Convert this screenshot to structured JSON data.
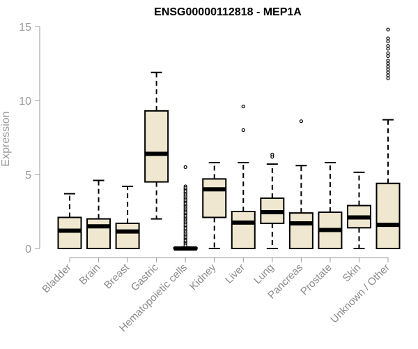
{
  "chart_data": {
    "type": "boxplot",
    "title": "ENSG00000112818 - MEP1A",
    "xlabel": "",
    "ylabel": "Expression",
    "ylim": [
      0,
      15
    ],
    "yticks": [
      0,
      5,
      10,
      15
    ],
    "grid": false,
    "box_color": "#efe7cf",
    "categories": [
      "Bladder",
      "Brain",
      "Breast",
      "Gastric",
      "Hematopoietic cells",
      "Kidney",
      "Liver",
      "Lung",
      "Pancreas",
      "Prostate",
      "Skin",
      "Unknown / Other"
    ],
    "boxes": [
      {
        "label": "Bladder",
        "whisker_low": 0,
        "q1": 0,
        "median": 1.2,
        "q3": 2.1,
        "whisker_high": 3.7,
        "outliers": []
      },
      {
        "label": "Brain",
        "whisker_low": 0,
        "q1": 0,
        "median": 1.5,
        "q3": 2.0,
        "whisker_high": 4.6,
        "outliers": []
      },
      {
        "label": "Breast",
        "whisker_low": 0,
        "q1": 0,
        "median": 1.15,
        "q3": 1.7,
        "whisker_high": 4.2,
        "outliers": []
      },
      {
        "label": "Gastric",
        "whisker_low": 2.0,
        "q1": 4.5,
        "median": 6.4,
        "q3": 9.3,
        "whisker_high": 11.9,
        "outliers": []
      },
      {
        "label": "Hematopoietic cells",
        "whisker_low": 0,
        "q1": 0,
        "median": 0.0,
        "q3": 0.05,
        "whisker_high": 0.1,
        "outliers": [
          5.5,
          4.2,
          4.1,
          4.0,
          3.9,
          3.8,
          3.7,
          3.6,
          3.5,
          3.4,
          3.3,
          3.2,
          3.1,
          3.0,
          2.9,
          2.8,
          2.7,
          2.6,
          2.5,
          2.4,
          2.3,
          2.2,
          2.1,
          2.0,
          1.9,
          1.8,
          1.7,
          1.6,
          1.5,
          1.4,
          1.3,
          1.2,
          1.1,
          1.0,
          0.9,
          0.8,
          0.7,
          0.6,
          0.5,
          0.4,
          0.3,
          0.2
        ]
      },
      {
        "label": "Kidney",
        "whisker_low": 0,
        "q1": 2.1,
        "median": 4.0,
        "q3": 4.7,
        "whisker_high": 5.8,
        "outliers": []
      },
      {
        "label": "Liver",
        "whisker_low": 0,
        "q1": 0,
        "median": 1.75,
        "q3": 2.5,
        "whisker_high": 5.8,
        "outliers": [
          8.0,
          9.6
        ]
      },
      {
        "label": "Lung",
        "whisker_low": 0,
        "q1": 1.7,
        "median": 2.45,
        "q3": 3.4,
        "whisker_high": 5.7,
        "outliers": [
          6.2,
          6.35
        ]
      },
      {
        "label": "Pancreas",
        "whisker_low": 0,
        "q1": 0,
        "median": 1.7,
        "q3": 2.4,
        "whisker_high": 5.6,
        "outliers": [
          8.6
        ]
      },
      {
        "label": "Prostate",
        "whisker_low": 0,
        "q1": 0,
        "median": 1.25,
        "q3": 2.45,
        "whisker_high": 5.8,
        "outliers": []
      },
      {
        "label": "Skin",
        "whisker_low": 0,
        "q1": 1.4,
        "median": 2.1,
        "q3": 2.9,
        "whisker_high": 5.15,
        "outliers": []
      },
      {
        "label": "Unknown / Other",
        "whisker_low": 0,
        "q1": 0,
        "median": 1.6,
        "q3": 4.4,
        "whisker_high": 8.7,
        "outliers": [
          11.5,
          11.7,
          11.9,
          12.1,
          12.3,
          12.5,
          12.7,
          13.0,
          13.2,
          13.5,
          13.7,
          14.0,
          14.2,
          14.8
        ]
      }
    ]
  }
}
